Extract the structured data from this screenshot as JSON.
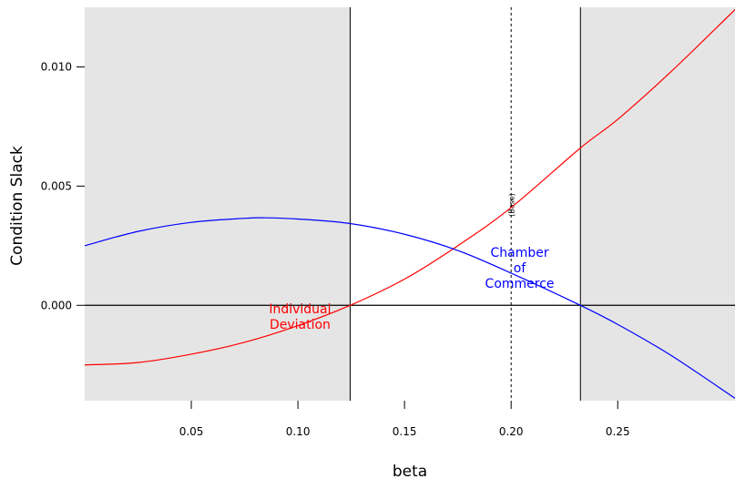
{
  "chart_data": {
    "type": "line",
    "title": "",
    "xlabel": "beta",
    "ylabel": "Condition Slack",
    "xlim": [
      0.0,
      0.305
    ],
    "ylim": [
      -0.004,
      0.0125
    ],
    "x_ticks": [
      0.05,
      0.1,
      0.15,
      0.2,
      0.25
    ],
    "x_tick_labels": [
      "0.05",
      "0.10",
      "0.15",
      "0.20",
      "0.25"
    ],
    "y_ticks": [
      0.0,
      0.005,
      0.01
    ],
    "y_tick_labels": [
      "0.000",
      "0.005",
      "0.010"
    ],
    "grid": false,
    "shaded_regions": [
      [
        0.0,
        0.1245
      ],
      [
        0.2325,
        0.305
      ]
    ],
    "vertical_lines": [
      0.1245,
      0.2325
    ],
    "base_line": {
      "x": 0.2,
      "label": "(Base)"
    },
    "zero_line": 0.0,
    "series": [
      {
        "name": "Individual Deviation",
        "color": "#ff0000",
        "x": [
          0.0,
          0.025,
          0.05,
          0.075,
          0.1,
          0.1245,
          0.15,
          0.175,
          0.2,
          0.2325,
          0.25,
          0.275,
          0.305
        ],
        "y": [
          -0.0025,
          -0.0024,
          -0.00205,
          -0.00155,
          -0.00085,
          0.0,
          0.0011,
          0.0025,
          0.0041,
          0.0066,
          0.0078,
          0.0098,
          0.0124
        ]
      },
      {
        "name": "Chamber of Commerce",
        "color": "#0000ff",
        "x": [
          0.0,
          0.025,
          0.05,
          0.075,
          0.085,
          0.1,
          0.1245,
          0.15,
          0.175,
          0.2,
          0.2325,
          0.25,
          0.275,
          0.305
        ],
        "y": [
          0.0025,
          0.0031,
          0.00348,
          0.00365,
          0.00367,
          0.00362,
          0.00343,
          0.00298,
          0.0023,
          0.00135,
          0.0,
          -0.0008,
          -0.0021,
          -0.0039
        ]
      }
    ],
    "annotations": [
      {
        "lines": [
          "Individual",
          "Deviation"
        ],
        "color": "#ff0000",
        "x": 0.101,
        "y": -0.0005
      },
      {
        "lines": [
          "Chamber",
          "of",
          "Commerce"
        ],
        "color": "#0000ff",
        "x": 0.204,
        "y": 0.00153
      }
    ]
  }
}
